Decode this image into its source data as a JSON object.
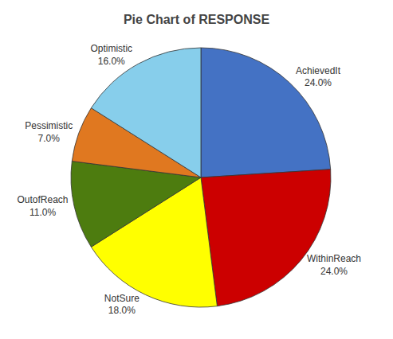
{
  "chart_data": {
    "type": "pie",
    "title": "Pie Chart of RESPONSE",
    "categories": [
      "AchievedIt",
      "WithinReach",
      "NotSure",
      "OutofReach",
      "Pessimistic",
      "Optimistic"
    ],
    "values": [
      24.0,
      24.0,
      18.0,
      11.0,
      7.0,
      16.0
    ],
    "value_labels": [
      "24.0%",
      "24.0%",
      "18.0%",
      "11.0%",
      "7.0%",
      "16.0%"
    ],
    "colors": [
      "#4472C4",
      "#CC0000",
      "#FFFF00",
      "#4D7C0F",
      "#E07820",
      "#87CEEB"
    ],
    "data_labels": true
  }
}
